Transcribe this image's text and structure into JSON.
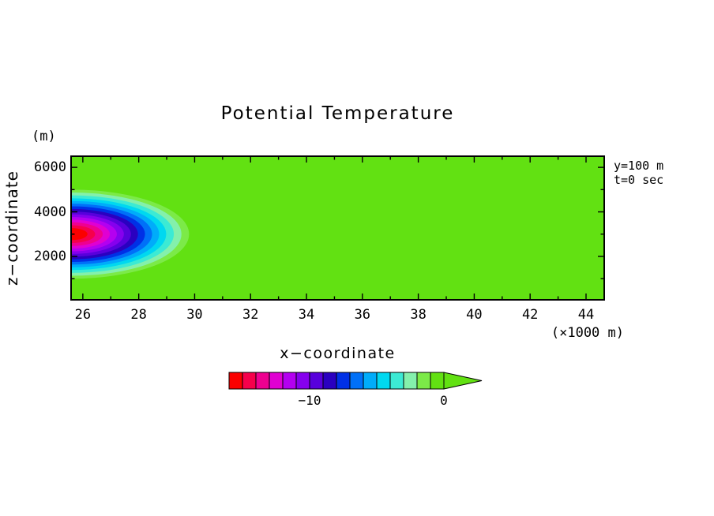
{
  "page": {
    "background": "#ffffff",
    "text_color": "#000000"
  },
  "chart_data": {
    "type": "heatmap",
    "subtype": "filled-contour",
    "title": "Potential Temperature",
    "xlabel": "x−coordinate",
    "x_units": "(×1000 m)",
    "ylabel": "z−coordinate",
    "y_units": "(m)",
    "annotations": [
      "y=100 m",
      "t=0 sec"
    ],
    "xlim": [
      25.58,
      44.65
    ],
    "ylim_m": [
      50,
      6500
    ],
    "x_ticks": [
      26,
      28,
      30,
      32,
      34,
      36,
      38,
      40,
      42,
      44
    ],
    "x_minor_ticks": [
      27,
      29,
      31,
      33,
      35,
      37,
      39,
      41,
      43
    ],
    "y_ticks": [
      2000,
      4000,
      6000
    ],
    "y_minor_ticks": [
      1000,
      3000,
      5000
    ],
    "background_value": 0,
    "bubble": {
      "description": "cold temperature perturbation bubble centered at left edge of domain",
      "center_x": 25.6,
      "center_z_m": 3000,
      "radius_x_units": 4.2,
      "radius_z_m": 2000,
      "min_value": -15
    },
    "contour_levels": [
      -1,
      -2,
      -3,
      -4,
      -5,
      -6,
      -7,
      -8,
      -9,
      -10,
      -11,
      -12,
      -13,
      -14,
      -15
    ],
    "contour_radius_fractions": [
      1.0,
      0.935,
      0.87,
      0.805,
      0.745,
      0.685,
      0.625,
      0.565,
      0.505,
      0.445,
      0.385,
      0.325,
      0.265,
      0.2,
      0.135
    ],
    "colorbar": {
      "colors": [
        "#fb0000",
        "#f6004b",
        "#ee0090",
        "#e000d2",
        "#b400f0",
        "#8600ee",
        "#5800dc",
        "#2a00c0",
        "#0030e6",
        "#0070f8",
        "#00acfa",
        "#00d8f0",
        "#3cead4",
        "#84f0ac",
        "#7cea48",
        "#62e112"
      ],
      "vmin": -16,
      "vmax": 0,
      "tick_values": [
        -10,
        0
      ],
      "tick_labels": [
        "−10",
        "0"
      ],
      "right_arrow": true
    }
  }
}
